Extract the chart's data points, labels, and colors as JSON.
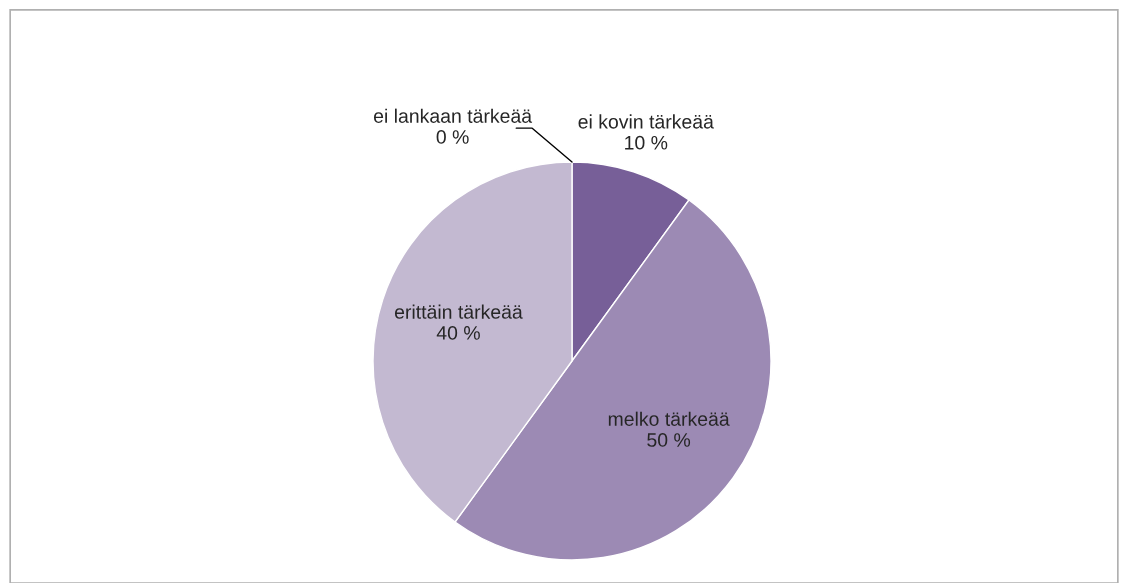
{
  "chart_data": {
    "type": "pie",
    "categories": [
      "ei lankaan tärkeää",
      "ei kovin tärkeää",
      "melko tärkeää",
      "erittäin tärkeää"
    ],
    "values": [
      0,
      10,
      50,
      40
    ],
    "value_labels": [
      "0 %",
      "10 %",
      "50 %",
      "40 %"
    ],
    "colors": [
      "#5e4a7a",
      "#775f98",
      "#9c8ab4",
      "#c3b9d1"
    ],
    "legend": false
  }
}
